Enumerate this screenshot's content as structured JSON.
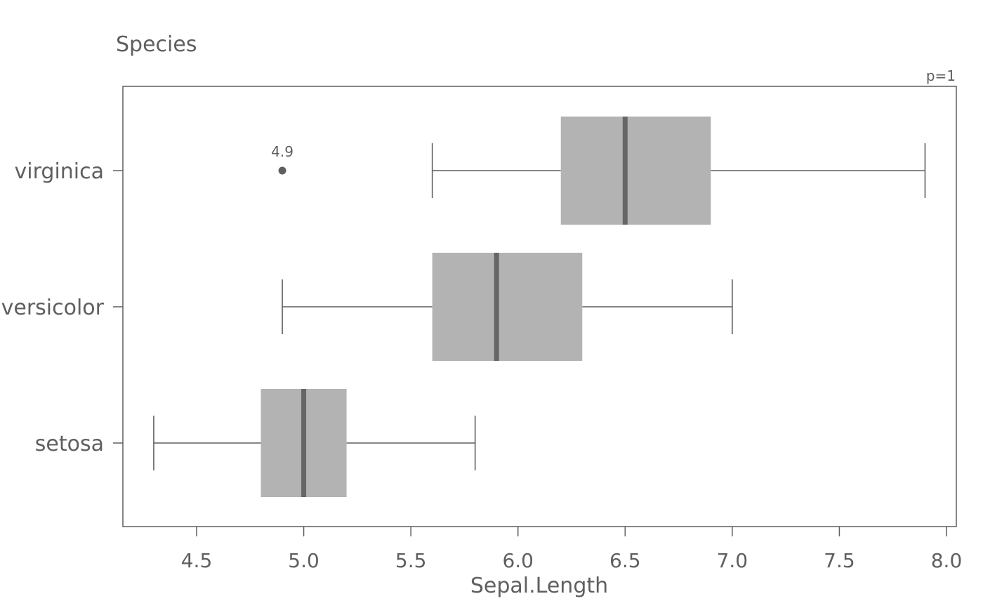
{
  "chart_data": {
    "type": "boxplot",
    "orientation": "horizontal",
    "title": "Species",
    "annotation": "p=1",
    "xlabel": "Sepal.Length",
    "xlim": [
      4.15,
      8.05
    ],
    "xticks": [
      "4.5",
      "5.0",
      "5.5",
      "6.0",
      "6.5",
      "7.0",
      "7.5",
      "8.0"
    ],
    "grid": false,
    "groups": [
      {
        "name": "setosa",
        "min": 4.3,
        "q1": 4.8,
        "median": 5.0,
        "q3": 5.2,
        "max": 5.8,
        "outliers": []
      },
      {
        "name": "versicolor",
        "min": 4.9,
        "q1": 5.6,
        "median": 5.9,
        "q3": 6.3,
        "max": 7.0,
        "outliers": []
      },
      {
        "name": "virginica",
        "min": 5.6,
        "q1": 6.2,
        "median": 6.5,
        "q3": 6.9,
        "max": 7.9,
        "outliers": [
          {
            "value": 4.9,
            "label": "4.9"
          }
        ]
      }
    ]
  }
}
